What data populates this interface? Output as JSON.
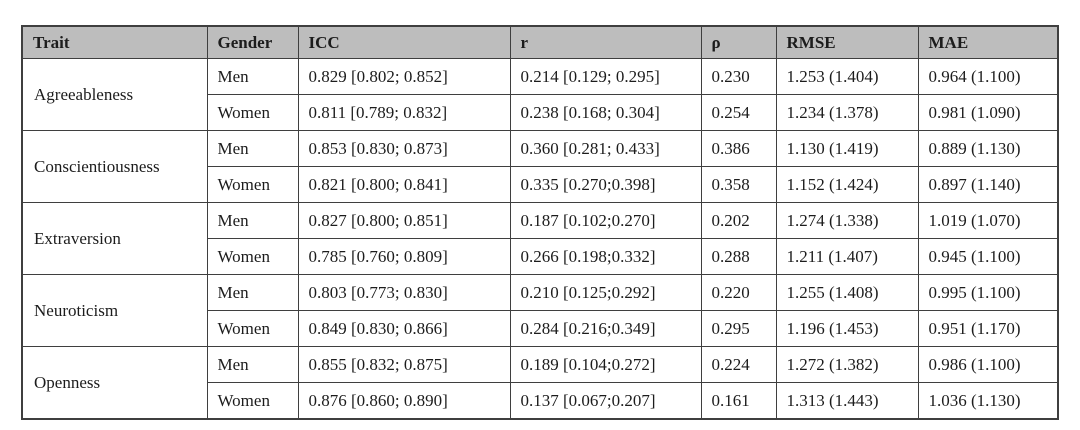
{
  "colors": {
    "header_bg": "#bdbdbd",
    "border": "#3f3f3f",
    "text": "#1c1c1c",
    "cell_bg": "#ffffff"
  },
  "table": {
    "columns": [
      {
        "key": "trait",
        "label": "Trait"
      },
      {
        "key": "gender",
        "label": "Gender"
      },
      {
        "key": "icc",
        "label": "ICC"
      },
      {
        "key": "r",
        "label": "r"
      },
      {
        "key": "rho",
        "label": "ρ"
      },
      {
        "key": "rmse",
        "label": "RMSE"
      },
      {
        "key": "mae",
        "label": "MAE"
      }
    ],
    "traits": [
      {
        "name": "Agreeableness",
        "rows": [
          {
            "gender": "Men",
            "icc": "0.829 [0.802; 0.852]",
            "r": "0.214 [0.129; 0.295]",
            "rho": "0.230",
            "rmse": "1.253 (1.404)",
            "mae": "0.964 (1.100)"
          },
          {
            "gender": "Women",
            "icc": "0.811 [0.789; 0.832]",
            "r": "0.238 [0.168; 0.304]",
            "rho": "0.254",
            "rmse": "1.234 (1.378)",
            "mae": "0.981 (1.090)"
          }
        ]
      },
      {
        "name": "Conscientiousness",
        "rows": [
          {
            "gender": "Men",
            "icc": "0.853 [0.830; 0.873]",
            "r": "0.360 [0.281; 0.433]",
            "rho": "0.386",
            "rmse": "1.130 (1.419)",
            "mae": "0.889 (1.130)"
          },
          {
            "gender": "Women",
            "icc": "0.821 [0.800; 0.841]",
            "r": "0.335 [0.270;0.398]",
            "rho": "0.358",
            "rmse": "1.152 (1.424)",
            "mae": "0.897 (1.140)"
          }
        ]
      },
      {
        "name": "Extraversion",
        "rows": [
          {
            "gender": "Men",
            "icc": "0.827 [0.800; 0.851]",
            "r": "0.187 [0.102;0.270]",
            "rho": "0.202",
            "rmse": "1.274 (1.338)",
            "mae": "1.019 (1.070)"
          },
          {
            "gender": "Women",
            "icc": "0.785 [0.760; 0.809]",
            "r": "0.266 [0.198;0.332]",
            "rho": "0.288",
            "rmse": "1.211 (1.407)",
            "mae": "0.945 (1.100)"
          }
        ]
      },
      {
        "name": "Neuroticism",
        "rows": [
          {
            "gender": "Men",
            "icc": "0.803 [0.773; 0.830]",
            "r": "0.210 [0.125;0.292]",
            "rho": "0.220",
            "rmse": "1.255 (1.408)",
            "mae": "0.995 (1.100)"
          },
          {
            "gender": "Women",
            "icc": "0.849 [0.830; 0.866]",
            "r": "0.284 [0.216;0.349]",
            "rho": "0.295",
            "rmse": "1.196 (1.453)",
            "mae": "0.951 (1.170)"
          }
        ]
      },
      {
        "name": "Openness",
        "rows": [
          {
            "gender": "Men",
            "icc": "0.855 [0.832; 0.875]",
            "r": "0.189 [0.104;0.272]",
            "rho": "0.224",
            "rmse": "1.272 (1.382)",
            "mae": "0.986 (1.100)"
          },
          {
            "gender": "Women",
            "icc": "0.876 [0.860; 0.890]",
            "r": "0.137 [0.067;0.207]",
            "rho": "0.161",
            "rmse": "1.313 (1.443)",
            "mae": "1.036 (1.130)"
          }
        ]
      }
    ]
  }
}
